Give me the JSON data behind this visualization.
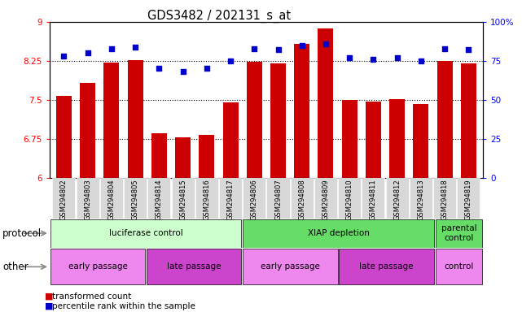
{
  "title": "GDS3482 / 202131_s_at",
  "samples": [
    "GSM294802",
    "GSM294803",
    "GSM294804",
    "GSM294805",
    "GSM294814",
    "GSM294815",
    "GSM294816",
    "GSM294817",
    "GSM294806",
    "GSM294807",
    "GSM294808",
    "GSM294809",
    "GSM294810",
    "GSM294811",
    "GSM294812",
    "GSM294813",
    "GSM294818",
    "GSM294819"
  ],
  "bar_values": [
    7.58,
    7.82,
    8.22,
    8.26,
    6.85,
    6.78,
    6.83,
    7.45,
    8.24,
    8.2,
    8.58,
    8.88,
    7.5,
    7.47,
    7.52,
    7.42,
    8.25,
    8.2
  ],
  "dot_values": [
    78,
    80,
    83,
    84,
    70,
    68,
    70,
    75,
    83,
    82,
    85,
    86,
    77,
    76,
    77,
    75,
    83,
    82
  ],
  "bar_color": "#cc0000",
  "dot_color": "#0000cc",
  "ylim_left": [
    6,
    9
  ],
  "ylim_right": [
    0,
    100
  ],
  "yticks_left": [
    6,
    6.75,
    7.5,
    8.25,
    9
  ],
  "ytick_labels_left": [
    "6",
    "6.75",
    "7.5",
    "8.25",
    "9"
  ],
  "yticks_right": [
    0,
    25,
    50,
    75,
    100
  ],
  "ytick_labels_right": [
    "0",
    "25",
    "50",
    "75",
    "100%"
  ],
  "grid_lines": [
    6.75,
    7.5,
    8.25
  ],
  "protocol_groups": [
    {
      "label": "luciferase control",
      "start": 0,
      "end": 8,
      "color": "#ccffcc"
    },
    {
      "label": "XIAP depletion",
      "start": 8,
      "end": 16,
      "color": "#66dd66"
    },
    {
      "label": "parental\ncontrol",
      "start": 16,
      "end": 18,
      "color": "#66dd66"
    }
  ],
  "other_groups": [
    {
      "label": "early passage",
      "start": 0,
      "end": 4,
      "color": "#ee88ee"
    },
    {
      "label": "late passage",
      "start": 4,
      "end": 8,
      "color": "#cc44cc"
    },
    {
      "label": "early passage",
      "start": 8,
      "end": 12,
      "color": "#ee88ee"
    },
    {
      "label": "late passage",
      "start": 12,
      "end": 16,
      "color": "#cc44cc"
    },
    {
      "label": "control",
      "start": 16,
      "end": 18,
      "color": "#ee88ee"
    }
  ],
  "protocol_label": "protocol",
  "other_label": "other",
  "legend_bar_label": "transformed count",
  "legend_dot_label": "percentile rank within the sample",
  "bg_color": "#f0f0f0",
  "xtick_bg": "#d8d8d8"
}
